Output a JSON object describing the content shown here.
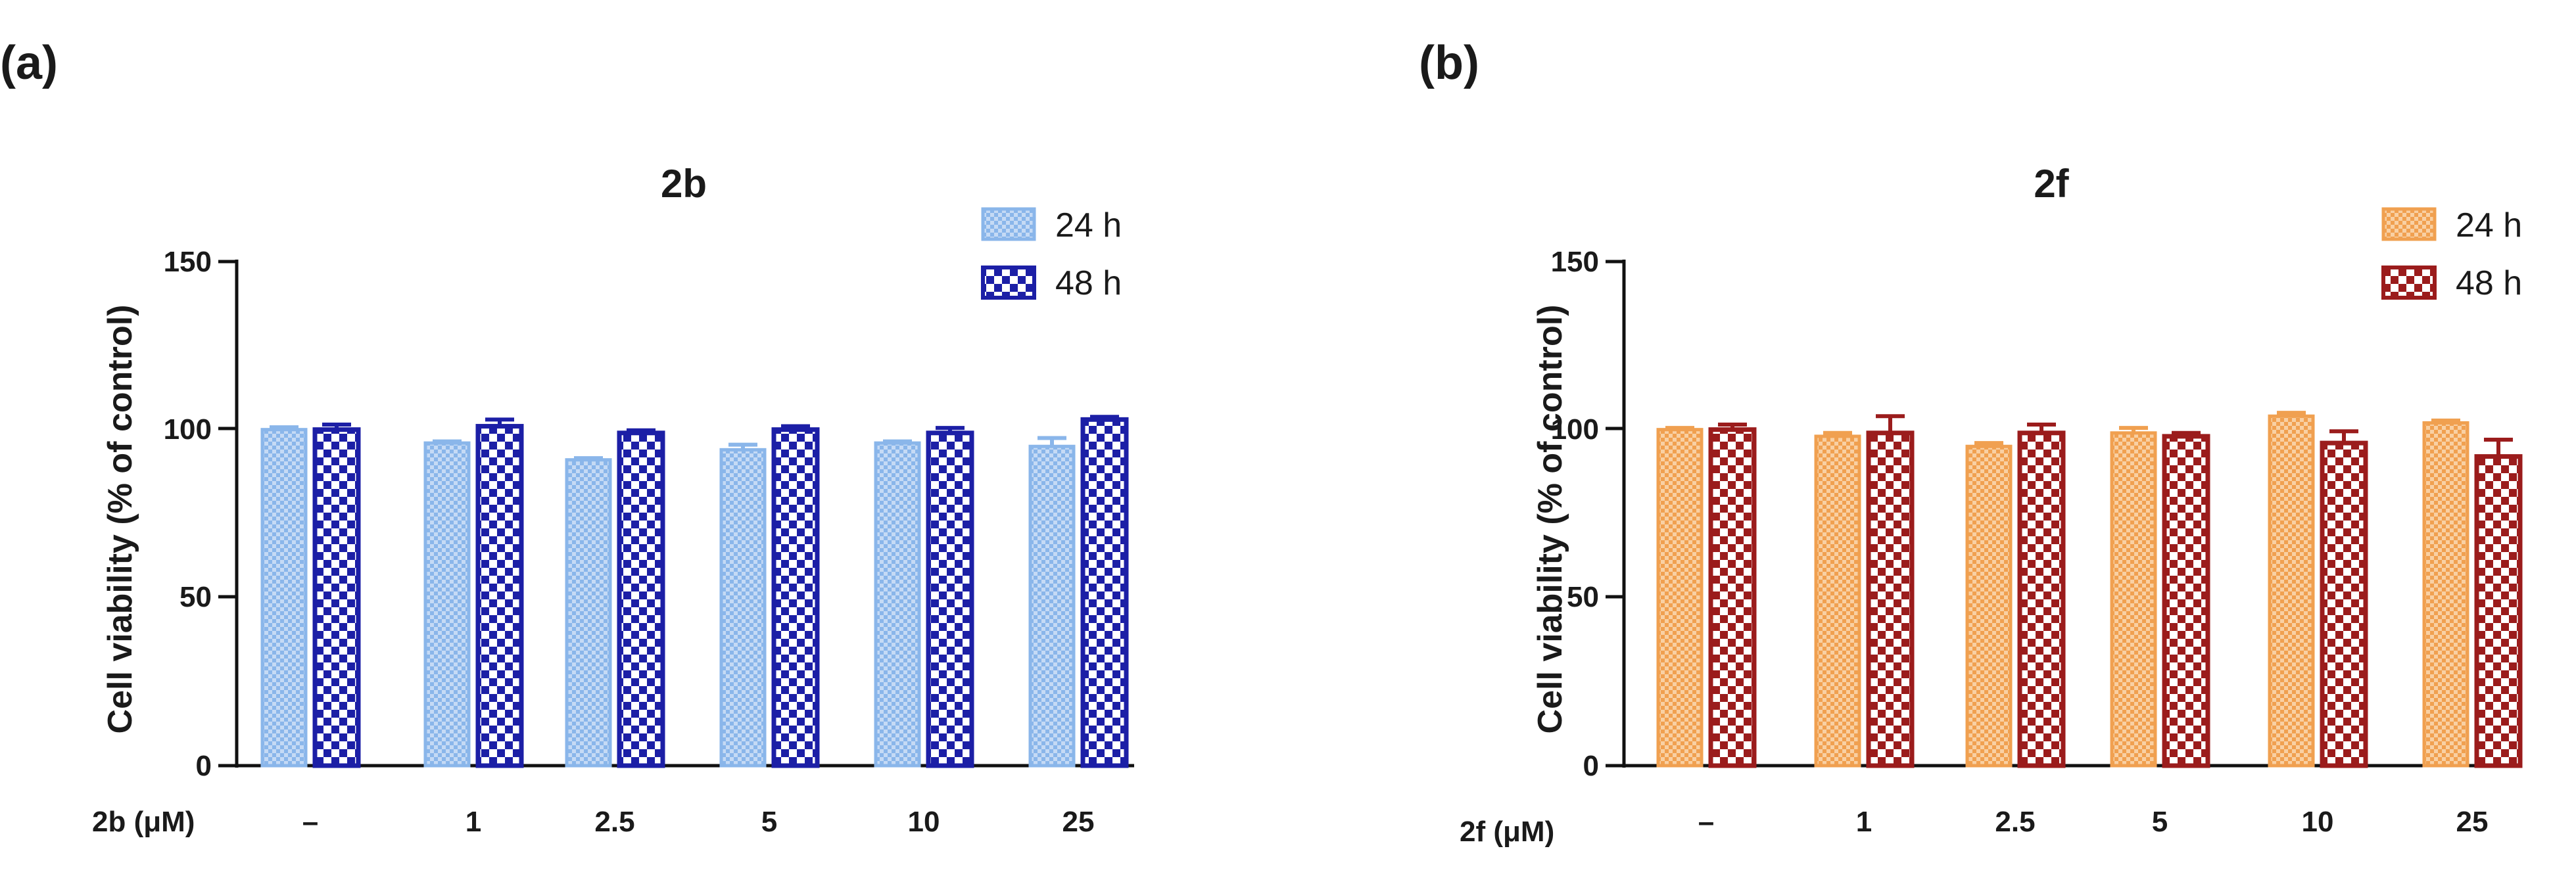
{
  "chart_data": [
    {
      "type": "bar",
      "panel_label": "(a)",
      "title": "2b",
      "xlabel": "2b (μM)",
      "ylabel": "Cell viability (% of control)",
      "ylim": [
        0,
        150
      ],
      "yticks": [
        0,
        50,
        100,
        150
      ],
      "categories": [
        "–",
        "1",
        "2.5",
        "5",
        "10",
        "25"
      ],
      "series": [
        {
          "name": "24 h",
          "color": "#9cc3ee",
          "values": [
            100,
            96,
            91,
            94,
            96,
            95
          ],
          "errors": [
            0.7,
            0.5,
            0.5,
            1.5,
            0.5,
            2.5
          ]
        },
        {
          "name": "48 h",
          "color": "#1c1fa6",
          "values": [
            100,
            101,
            99,
            100,
            99,
            103
          ],
          "errors": [
            1.5,
            2.0,
            0.8,
            1.0,
            1.5,
            0.8
          ]
        }
      ],
      "legend_position": "top-right"
    },
    {
      "type": "bar",
      "panel_label": "(b)",
      "title": "2f",
      "xlabel": "2f (μM)",
      "ylabel": "Cell viability (% of control)",
      "ylim": [
        0,
        150
      ],
      "yticks": [
        0,
        50,
        100,
        150
      ],
      "categories": [
        "–",
        "1",
        "2.5",
        "5",
        "10",
        "25"
      ],
      "series": [
        {
          "name": "24 h",
          "color": "#f2a65a",
          "values": [
            100,
            98,
            95,
            99,
            104,
            102
          ],
          "errors": [
            0.5,
            1.0,
            1.0,
            1.5,
            1.0,
            0.7
          ]
        },
        {
          "name": "48 h",
          "color": "#9b1c1c",
          "values": [
            100,
            99,
            99,
            98,
            96,
            92
          ],
          "errors": [
            1.5,
            5.0,
            2.5,
            1.0,
            3.5,
            5.0
          ]
        }
      ],
      "legend_position": "top-right"
    }
  ]
}
